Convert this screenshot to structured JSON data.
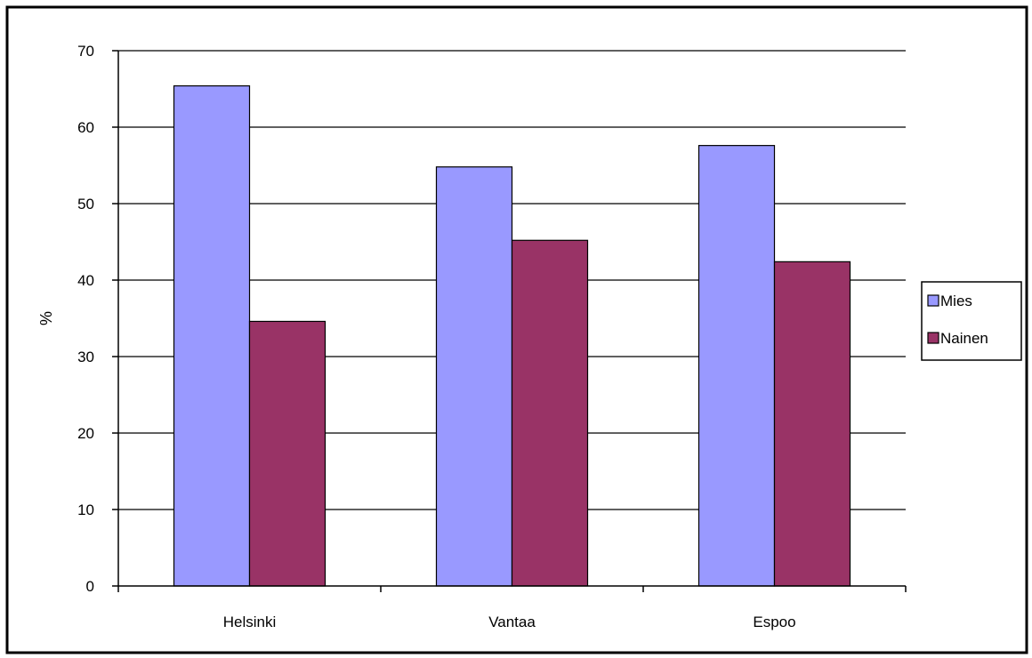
{
  "chart_data": {
    "type": "bar",
    "title": "",
    "xlabel": "",
    "ylabel": "%",
    "ylim": [
      0,
      70
    ],
    "yticks": [
      0,
      10,
      20,
      30,
      40,
      50,
      60,
      70
    ],
    "grid": true,
    "legend_position": "right",
    "categories": [
      "Helsinki",
      "Vantaa",
      "Espoo"
    ],
    "series": [
      {
        "name": "Mies",
        "values": [
          65.4,
          54.8,
          57.6
        ],
        "color": "#9999ff"
      },
      {
        "name": "Nainen",
        "values": [
          34.6,
          45.2,
          42.4
        ],
        "color": "#993366"
      }
    ]
  }
}
